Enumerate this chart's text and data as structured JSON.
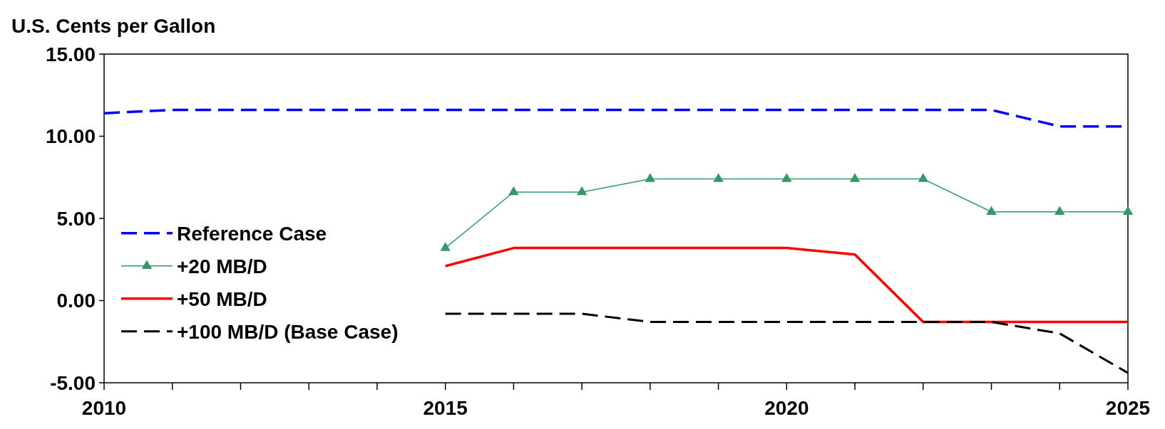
{
  "chart_data": {
    "type": "line",
    "ylabel": "U.S. Cents per Gallon",
    "x": [
      2010,
      2011,
      2012,
      2013,
      2014,
      2015,
      2016,
      2017,
      2018,
      2019,
      2020,
      2021,
      2022,
      2023,
      2024,
      2025
    ],
    "xlim": [
      2010,
      2025
    ],
    "xticks": [
      2010,
      {
        "value": 2011,
        "label": null
      },
      {
        "value": 2012,
        "label": null
      },
      {
        "value": 2013,
        "label": null
      },
      {
        "value": 2014,
        "label": null
      },
      2015,
      {
        "value": 2016,
        "label": null
      },
      {
        "value": 2017,
        "label": null
      },
      {
        "value": 2018,
        "label": null
      },
      {
        "value": 2019,
        "label": null
      },
      2020,
      {
        "value": 2021,
        "label": null
      },
      {
        "value": 2022,
        "label": null
      },
      {
        "value": 2023,
        "label": null
      },
      {
        "value": 2024,
        "label": null
      },
      2025
    ],
    "ylim": [
      -5,
      15
    ],
    "yticks": [
      {
        "value": -5,
        "label": "-5.00"
      },
      {
        "value": 0,
        "label": "0.00"
      },
      {
        "value": 5,
        "label": "5.00"
      },
      {
        "value": 10,
        "label": "10.00"
      },
      {
        "value": 15,
        "label": "15.00"
      }
    ],
    "grid": false,
    "legend": "left",
    "series": [
      {
        "name": "Reference Case",
        "color": "#0000ff",
        "line_style": "dashed",
        "marker": "none",
        "values": [
          11.4,
          11.6,
          11.6,
          11.6,
          11.6,
          11.6,
          11.6,
          11.6,
          11.6,
          11.6,
          11.6,
          11.6,
          11.6,
          11.6,
          10.6,
          10.6
        ]
      },
      {
        "name": "+20 MB/D",
        "color": "#339966",
        "line_style": "solid",
        "marker": "triangle",
        "values": [
          null,
          null,
          null,
          null,
          null,
          3.2,
          6.6,
          6.6,
          7.4,
          7.4,
          7.4,
          7.4,
          7.4,
          5.4,
          5.4,
          5.4
        ]
      },
      {
        "name": "+50 MB/D",
        "color": "#ff0000",
        "line_style": "solid",
        "marker": "none",
        "values": [
          null,
          null,
          null,
          null,
          null,
          2.1,
          3.2,
          3.2,
          3.2,
          3.2,
          3.2,
          2.8,
          -1.3,
          -1.3,
          -1.3,
          -1.3
        ]
      },
      {
        "name": "+100 MB/D (Base Case)",
        "color": "#000000",
        "line_style": "dashed",
        "marker": "none",
        "values": [
          null,
          null,
          null,
          null,
          null,
          -0.8,
          -0.8,
          -0.8,
          -1.3,
          -1.3,
          -1.3,
          -1.3,
          -1.3,
          -1.3,
          -2.0,
          -4.4
        ]
      }
    ]
  }
}
